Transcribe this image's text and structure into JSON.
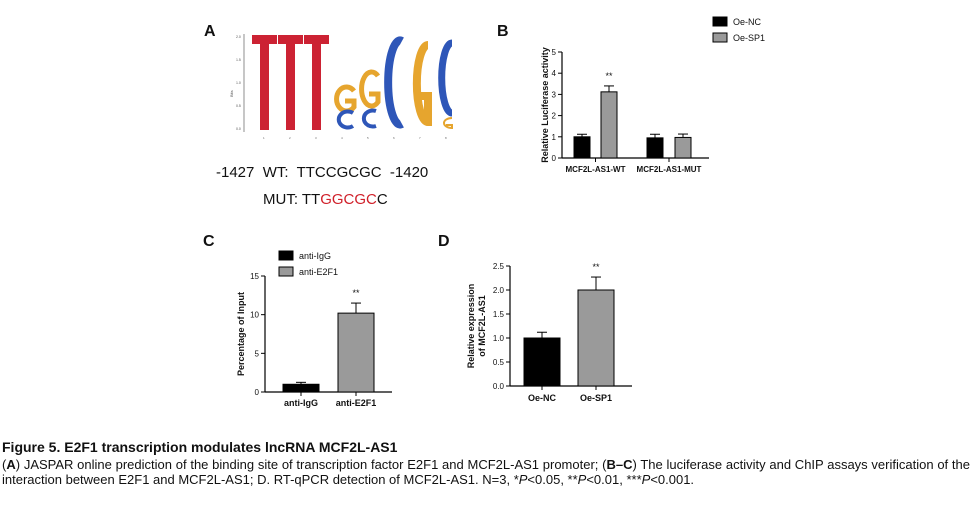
{
  "panel_a": {
    "letter": "A",
    "logo_letters": [
      "T",
      "T",
      "T",
      "G",
      "C",
      "G",
      "C",
      "C",
      "G",
      "C",
      "G"
    ],
    "wt_line": "-1427  WT:  TTCCGCGC  -1420",
    "mut_prefix": "MUT: TT",
    "mut_highlight": "GGCGC",
    "mut_suffix": "C",
    "colors": {
      "T": "#cc2233",
      "G": "#e6a52e",
      "C": "#2e56b8",
      "mut_red": "#d0202a"
    }
  },
  "colors": {
    "black_bar": "#000000",
    "gray_bar": "#9a9a9a",
    "axis": "#000000"
  },
  "chart_data": [
    {
      "panel": "B",
      "type": "bar",
      "ylabel": "Relative Luciferase activity",
      "ylim": [
        0,
        5
      ],
      "yticks": [
        0,
        1,
        2,
        3,
        4,
        5
      ],
      "categories": [
        "MCF2L-AS1-WT",
        "MCF2L-AS1-MUT"
      ],
      "series": [
        {
          "name": "Oe-NC",
          "color": "#000000",
          "values": [
            1.0,
            0.95
          ],
          "errors": [
            0.12,
            0.17
          ]
        },
        {
          "name": "Oe-SP1",
          "color": "#9a9a9a",
          "values": [
            3.12,
            0.97
          ],
          "errors": [
            0.28,
            0.16
          ]
        }
      ],
      "annotations": [
        {
          "category": 0,
          "series": 1,
          "text": "**"
        }
      ],
      "legend": "top-right"
    },
    {
      "panel": "C",
      "type": "bar",
      "ylabel": "Percentage of Input",
      "ylim": [
        0,
        15
      ],
      "yticks": [
        0,
        5,
        10,
        15
      ],
      "categories": [
        "anti-IgG",
        "anti-E2F1"
      ],
      "series": [
        {
          "name": "anti-IgG",
          "color": "#000000",
          "values": [
            1.0,
            null
          ],
          "errors": [
            0.25,
            null
          ]
        },
        {
          "name": "anti-E2F1",
          "color": "#9a9a9a",
          "values": [
            null,
            10.2
          ],
          "errors": [
            null,
            1.3
          ]
        }
      ],
      "annotations": [
        {
          "category": 1,
          "series": 1,
          "text": "**"
        }
      ],
      "legend": "top-left"
    },
    {
      "panel": "D",
      "type": "bar",
      "ylabel": "Relative expression of MCF2L-AS1",
      "ylim": [
        0,
        2.5
      ],
      "yticks": [
        0.0,
        0.5,
        1.0,
        1.5,
        2.0,
        2.5
      ],
      "categories": [
        "Oe-NC",
        "Oe-SP1"
      ],
      "series": [
        {
          "name": "",
          "color": "#000000",
          "values": [
            1.0,
            null
          ],
          "errors": [
            0.12,
            null
          ]
        },
        {
          "name": "",
          "color": "#9a9a9a",
          "values": [
            null,
            2.0
          ],
          "errors": [
            null,
            0.27
          ]
        }
      ],
      "annotations": [
        {
          "category": 1,
          "series": 1,
          "text": "**"
        }
      ]
    }
  ],
  "caption": {
    "title": "Figure 5. E2F1 transcription modulates lncRNA MCF2L-AS1",
    "b1": "A",
    "t1": ") JASPAR online prediction of the binding site of transcription factor E2F1 and MCF2L-AS1 promoter; (",
    "b2": "B–C",
    "t2": ") The luciferase activity and ChIP assays verification of the interaction between E2F1 and MCF2L-AS1; D. RT-qPCR detection of MCF2L-AS1. N=3, *",
    "p1": "P",
    "t3": "<0.05, **",
    "p2": "P",
    "t4": "<0.01, ***",
    "p3": "P",
    "t5": "<0.001."
  }
}
